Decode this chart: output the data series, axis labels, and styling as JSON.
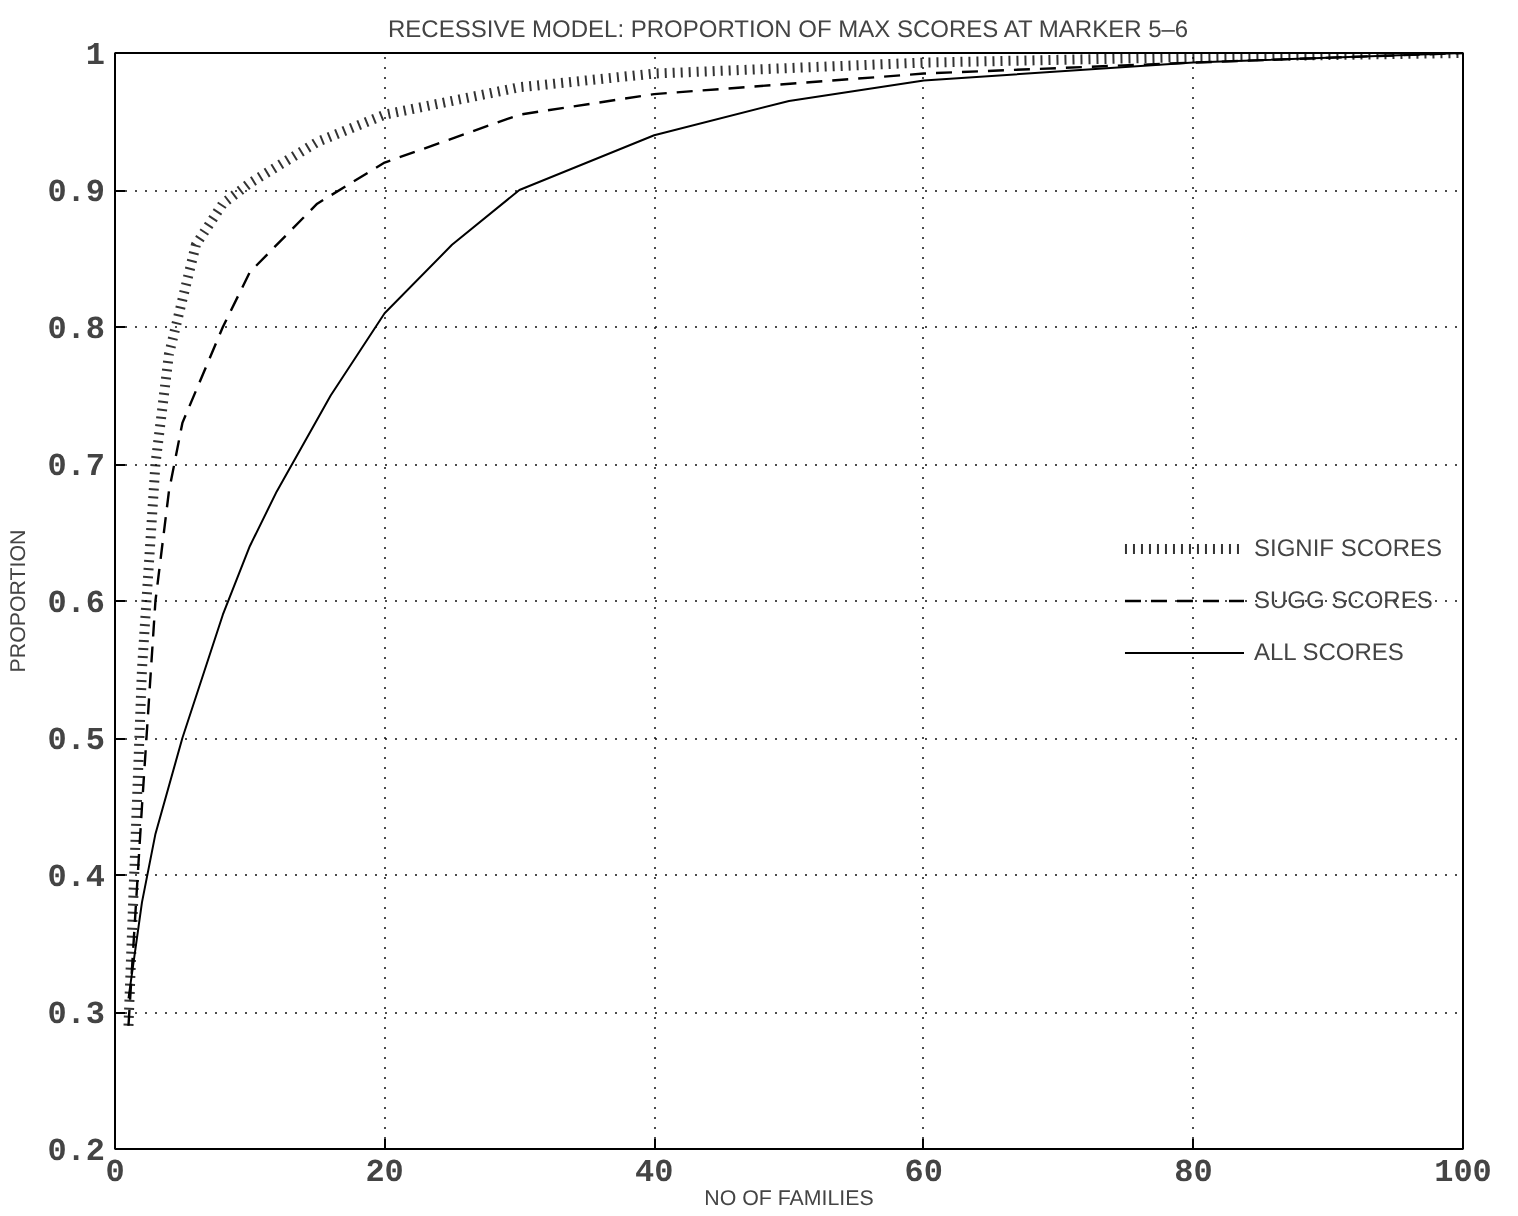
{
  "chart_data": {
    "type": "line",
    "title": "RECESSIVE MODEL: PROPORTION OF MAX SCORES AT MARKER 5–6",
    "xlabel": "NO OF FAMILIES",
    "ylabel": "PROPORTION",
    "xlim": [
      0,
      100
    ],
    "xticks": [
      0,
      20,
      40,
      60,
      80,
      100
    ],
    "ylim": [
      0.2,
      1
    ],
    "yticks": [
      0.2,
      0.3,
      0.4,
      0.5,
      0.6,
      0.7,
      0.8,
      0.9,
      1
    ],
    "grid": true,
    "legend": "right",
    "series": [
      {
        "name": "SIGNIF SCORES",
        "color": "#000000",
        "line_style": "dotted",
        "x": [
          1,
          2,
          3,
          4,
          5,
          6,
          8,
          10,
          15,
          20,
          30,
          40,
          60,
          80,
          100
        ],
        "values": [
          0.29,
          0.55,
          0.7,
          0.78,
          0.82,
          0.86,
          0.89,
          0.905,
          0.935,
          0.955,
          0.975,
          0.985,
          0.993,
          0.997,
          1
        ]
      },
      {
        "name": "SUGG SCORES",
        "color": "#000000",
        "line_style": "dashed",
        "x": [
          1,
          2,
          3,
          4,
          5,
          8,
          10,
          15,
          20,
          30,
          40,
          60,
          80,
          100
        ],
        "values": [
          0.29,
          0.45,
          0.6,
          0.68,
          0.73,
          0.8,
          0.84,
          0.89,
          0.92,
          0.955,
          0.97,
          0.985,
          0.993,
          1
        ]
      },
      {
        "name": "ALL SCORES",
        "color": "#000000",
        "line_style": "solid",
        "x": [
          1,
          2,
          3,
          5,
          8,
          10,
          12,
          16,
          20,
          25,
          30,
          40,
          50,
          60,
          80,
          100
        ],
        "values": [
          0.31,
          0.38,
          0.43,
          0.5,
          0.59,
          0.64,
          0.68,
          0.75,
          0.81,
          0.86,
          0.9,
          0.94,
          0.965,
          0.98,
          0.993,
          1
        ]
      }
    ]
  }
}
